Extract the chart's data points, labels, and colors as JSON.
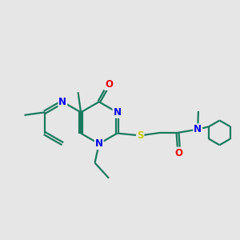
{
  "background_color": "#e6e6e6",
  "bond_color": "#1a7a5e",
  "atom_colors": {
    "N": "#0000ee",
    "O": "#ee0000",
    "S": "#cccc00",
    "C": "#1a7a5e"
  },
  "font_size_atom": 8.5,
  "line_width": 1.6,
  "figsize": [
    3.0,
    3.0
  ],
  "dpi": 100
}
